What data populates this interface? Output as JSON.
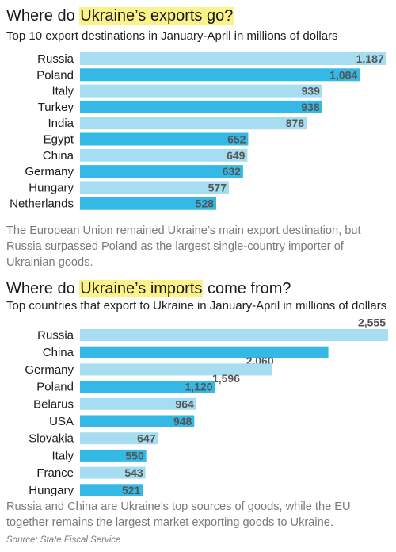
{
  "colors": {
    "bar_dark": "#34b9e6",
    "bar_light": "#a6ddf1",
    "highlight": "#fbf38a"
  },
  "exports": {
    "title_pre": "Where do ",
    "title_hl": "Ukraine’s exports go?",
    "title_post": "",
    "subtitle": "Top 10 export destinations in January-April in millions of dollars",
    "note": "The European Union remained Ukraine’s main export destination, but Russia surpassed Poland as the largest single-country importer of Ukrainian goods."
  },
  "imports": {
    "title_pre": "Where do ",
    "title_hl": "Ukraine’s imports",
    "title_post": " come from?",
    "subtitle": "Top countries that export to Ukraine in January-April in millions of dollars",
    "note": "Russia and China are Ukraine’s top sources of goods, while the EU together remains the largest market exporting goods to Ukraine."
  },
  "source": "Source: State Fiscal Service",
  "chart_data": [
    {
      "type": "bar",
      "orientation": "horizontal",
      "title": "Where do Ukraine’s exports go?",
      "subtitle": "Top 10 export destinations in January-April in millions of dollars",
      "categories": [
        "Russia",
        "Poland",
        "Italy",
        "Turkey",
        "India",
        "Egypt",
        "China",
        "Germany",
        "Hungary",
        "Netherlands"
      ],
      "values": [
        1187,
        1084,
        939,
        938,
        878,
        652,
        649,
        632,
        577,
        528
      ],
      "value_labels": [
        "1,187",
        "1,084",
        "939",
        "938",
        "878",
        "652",
        "649",
        "632",
        "577",
        "528"
      ],
      "xlim": [
        0,
        1200
      ],
      "grid": false,
      "legend": "none"
    },
    {
      "type": "bar",
      "orientation": "horizontal",
      "title": "Where do Ukraine’s imports come from?",
      "subtitle": "Top countries that export to Ukraine in January-April in millions of dollars",
      "categories": [
        "Russia",
        "China",
        "Germany",
        "Poland",
        "Belarus",
        "USA",
        "Slovakia",
        "Italy",
        "France",
        "Hungary"
      ],
      "values": [
        2555,
        2060,
        1596,
        1120,
        964,
        948,
        647,
        550,
        543,
        521
      ],
      "value_labels": [
        "2,555",
        "2,060",
        "1,596",
        "1,120",
        "964",
        "948",
        "647",
        "550",
        "543",
        "521"
      ],
      "xlim": [
        0,
        2555
      ],
      "grid": false,
      "legend": "none"
    }
  ]
}
